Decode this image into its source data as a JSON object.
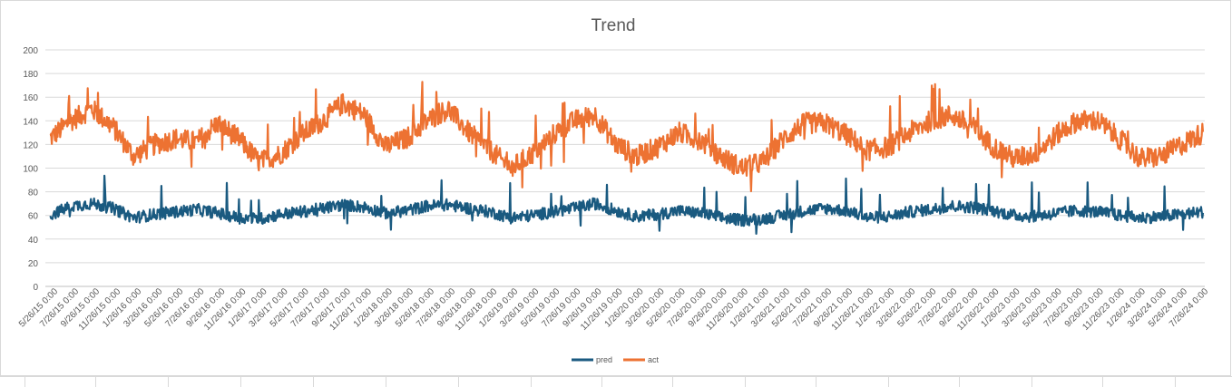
{
  "chart_data": {
    "type": "line",
    "title": "Trend",
    "xlabel": "",
    "ylabel": "",
    "ylim": [
      0,
      200
    ],
    "yticks": [
      0,
      20,
      40,
      60,
      80,
      100,
      120,
      140,
      160,
      180,
      200
    ],
    "grid": true,
    "legend": "bottom-center",
    "x_categories": [
      "5/26/15 0:00",
      "7/26/15 0:00",
      "9/26/15 0:00",
      "11/26/15 0:00",
      "1/26/16 0:00",
      "3/26/16 0:00",
      "5/26/16 0:00",
      "7/26/16 0:00",
      "9/26/16 0:00",
      "11/26/16 0:00",
      "1/26/17 0:00",
      "3/26/17 0:00",
      "5/26/17 0:00",
      "7/26/17 0:00",
      "9/26/17 0:00",
      "11/26/17 0:00",
      "1/26/18 0:00",
      "3/26/18 0:00",
      "5/26/18 0:00",
      "7/26/18 0:00",
      "9/26/18 0:00",
      "11/26/18 0:00",
      "1/26/19 0:00",
      "3/26/19 0:00",
      "5/26/19 0:00",
      "7/26/19 0:00",
      "9/26/19 0:00",
      "11/26/19 0:00",
      "1/26/20 0:00",
      "3/26/20 0:00",
      "5/26/20 0:00",
      "7/26/20 0:00",
      "9/26/20 0:00",
      "11/26/20 0:00",
      "1/26/21 0:00",
      "3/26/21 0:00",
      "5/26/21 0:00",
      "7/26/21 0:00",
      "9/26/21 0:00",
      "11/26/21 0:00",
      "1/26/22 0:00",
      "3/26/22 0:00",
      "5/26/22 0:00",
      "7/26/22 0:00",
      "9/26/22 0:00",
      "11/26/22 0:00",
      "1/26/23 0:00",
      "3/26/23 0:00",
      "5/26/23 0:00",
      "7/26/23 0:00",
      "9/26/23 0:00",
      "11/26/23 0:00",
      "1/26/24 0:00",
      "3/26/24 0:00",
      "5/26/24 0:00",
      "7/26/24 0:00"
    ],
    "series": [
      {
        "name": "pred",
        "color": "#1a5a80",
        "values": [
          60,
          68,
          70,
          66,
          58,
          61,
          63,
          65,
          62,
          58,
          57,
          61,
          63,
          66,
          69,
          67,
          62,
          64,
          68,
          69,
          66,
          63,
          58,
          60,
          63,
          66,
          70,
          64,
          59,
          61,
          64,
          62,
          58,
          56,
          57,
          60,
          64,
          66,
          64,
          58,
          59,
          63,
          65,
          68,
          67,
          64,
          60,
          59,
          62,
          64,
          63,
          60,
          58,
          59,
          61,
          63
        ]
      },
      {
        "name": "act",
        "color": "#ed7232",
        "values": [
          125,
          140,
          150,
          135,
          110,
          120,
          125,
          122,
          138,
          125,
          105,
          112,
          128,
          140,
          155,
          145,
          118,
          125,
          140,
          150,
          130,
          115,
          100,
          112,
          128,
          140,
          145,
          120,
          110,
          118,
          130,
          124,
          110,
          100,
          105,
          125,
          138,
          138,
          128,
          115,
          118,
          130,
          140,
          145,
          135,
          118,
          108,
          112,
          128,
          140,
          140,
          125,
          108,
          110,
          120,
          130
        ]
      }
    ]
  }
}
